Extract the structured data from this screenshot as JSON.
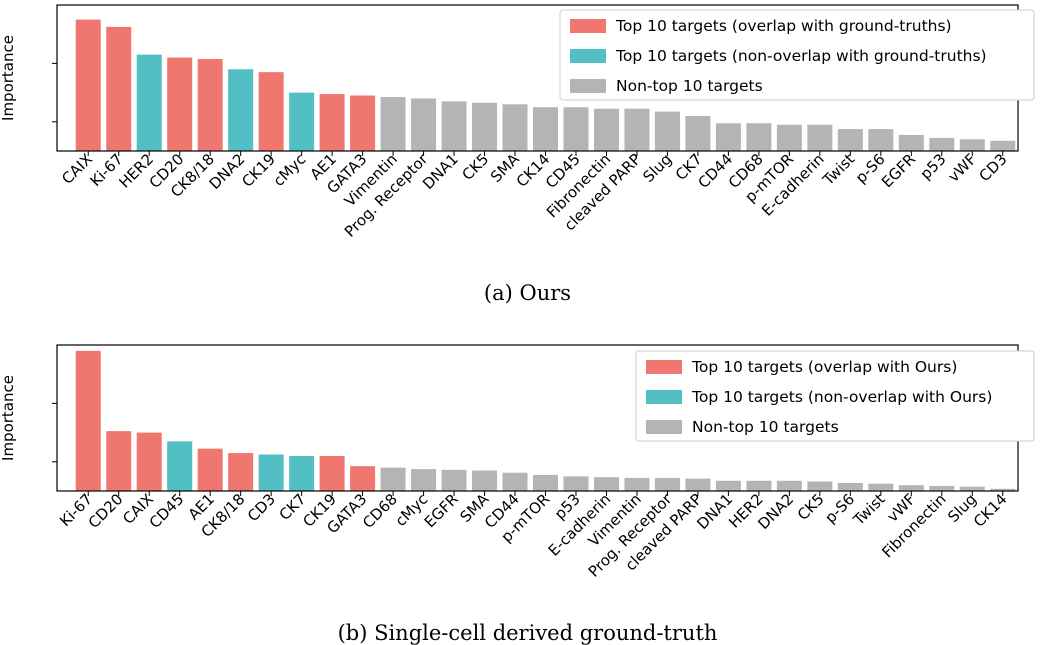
{
  "chart_data": [
    {
      "type": "bar",
      "ylabel": "Importance",
      "caption": "(a) Ours",
      "colors": {
        "overlap": "#ef776f",
        "non_overlap": "#52bfc5",
        "non_top": "#b4b4b4"
      },
      "legend": [
        {
          "label": "Top 10 targets (overlap with ground-truths)",
          "key": "overlap"
        },
        {
          "label": "Top 10 targets (non-overlap with ground-truths)",
          "key": "non_overlap"
        },
        {
          "label": "Non-top 10 targets",
          "key": "non_top"
        }
      ],
      "legend_position": "top-right",
      "ylim": [
        0,
        1.0
      ],
      "yticks": [
        0.2,
        0.6
      ],
      "categories": [
        "CAIX",
        "Ki-67",
        "HER2",
        "CD20",
        "CK8/18",
        "DNA2",
        "CK19",
        "cMyc",
        "AE1",
        "GATA3",
        "Vimentin",
        "Prog. Receptor",
        "DNA1",
        "CK5",
        "SMA",
        "CK14",
        "CD45",
        "Fibronectin",
        "cleaved PARP",
        "Slug",
        "CK7",
        "CD44",
        "CD68",
        "p-mTOR",
        "E-cadherin",
        "Twist",
        "p-S6",
        "EGFR",
        "p53",
        "vWF",
        "CD3"
      ],
      "values": [
        0.9,
        0.85,
        0.66,
        0.64,
        0.63,
        0.56,
        0.54,
        0.4,
        0.39,
        0.38,
        0.37,
        0.36,
        0.34,
        0.33,
        0.32,
        0.3,
        0.3,
        0.29,
        0.29,
        0.27,
        0.24,
        0.19,
        0.19,
        0.18,
        0.18,
        0.15,
        0.15,
        0.11,
        0.09,
        0.08,
        0.07
      ],
      "groups": [
        "overlap",
        "overlap",
        "non_overlap",
        "overlap",
        "overlap",
        "non_overlap",
        "overlap",
        "non_overlap",
        "overlap",
        "overlap",
        "non_top",
        "non_top",
        "non_top",
        "non_top",
        "non_top",
        "non_top",
        "non_top",
        "non_top",
        "non_top",
        "non_top",
        "non_top",
        "non_top",
        "non_top",
        "non_top",
        "non_top",
        "non_top",
        "non_top",
        "non_top",
        "non_top",
        "non_top",
        "non_top"
      ]
    },
    {
      "type": "bar",
      "ylabel": "Importance",
      "caption": "(b) Single-cell derived ground-truth",
      "colors": {
        "overlap": "#ef776f",
        "non_overlap": "#52bfc5",
        "non_top": "#b4b4b4"
      },
      "legend": [
        {
          "label": "Top 10 targets (overlap with Ours)",
          "key": "overlap"
        },
        {
          "label": "Top 10 targets (non-overlap with Ours)",
          "key": "non_overlap"
        },
        {
          "label": "Non-top 10 targets",
          "key": "non_top"
        }
      ],
      "legend_position": "top-right",
      "ylim": [
        0,
        1.0
      ],
      "yticks": [
        0.2,
        0.6
      ],
      "categories": [
        "Ki-67",
        "CD20",
        "CAIX",
        "CD45",
        "AE1",
        "CK8/18",
        "CD3",
        "CK7",
        "CK19",
        "GATA3",
        "CD68",
        "cMyc",
        "EGFR",
        "SMA",
        "CD44",
        "p-mTOR",
        "p53",
        "E-cadherin",
        "Vimentin",
        "Prog. Receptor",
        "cleaved PARP",
        "DNA1",
        "HER2",
        "DNA2",
        "CK5",
        "p-S6",
        "Twist",
        "vWF",
        "Fibronectin",
        "Slug",
        "CK14"
      ],
      "values": [
        0.96,
        0.41,
        0.4,
        0.34,
        0.29,
        0.26,
        0.25,
        0.24,
        0.24,
        0.17,
        0.16,
        0.15,
        0.145,
        0.14,
        0.125,
        0.11,
        0.1,
        0.095,
        0.09,
        0.09,
        0.085,
        0.07,
        0.07,
        0.07,
        0.065,
        0.055,
        0.05,
        0.04,
        0.035,
        0.03,
        0.015
      ],
      "groups": [
        "overlap",
        "overlap",
        "overlap",
        "non_overlap",
        "overlap",
        "overlap",
        "non_overlap",
        "non_overlap",
        "overlap",
        "overlap",
        "non_top",
        "non_top",
        "non_top",
        "non_top",
        "non_top",
        "non_top",
        "non_top",
        "non_top",
        "non_top",
        "non_top",
        "non_top",
        "non_top",
        "non_top",
        "non_top",
        "non_top",
        "non_top",
        "non_top",
        "non_top",
        "non_top",
        "non_top",
        "non_top"
      ]
    }
  ]
}
